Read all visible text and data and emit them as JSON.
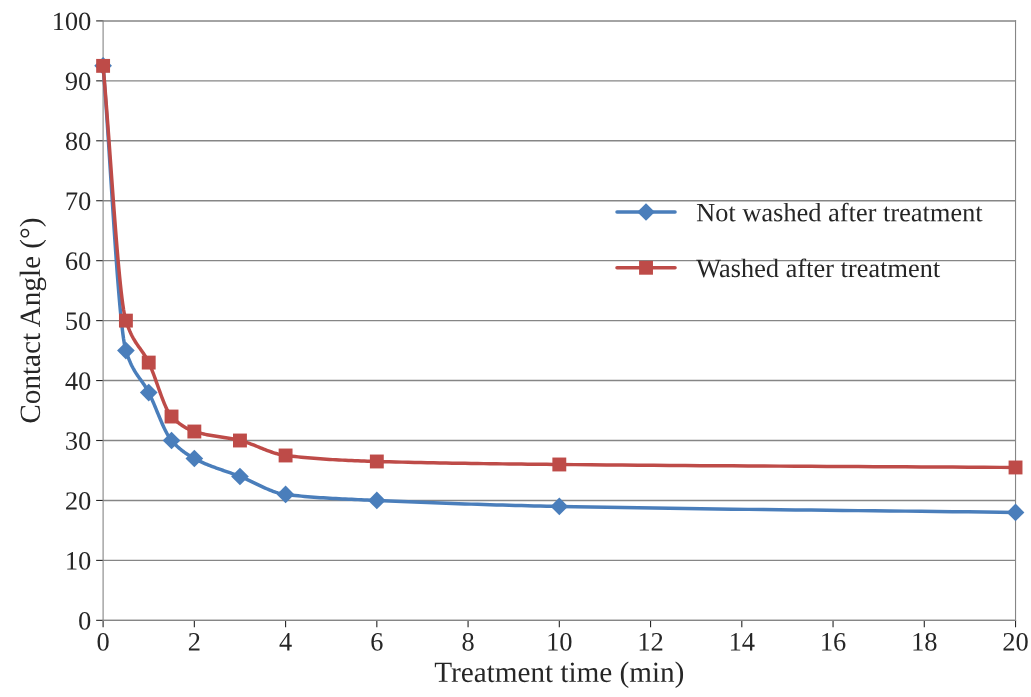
{
  "chart_data": {
    "type": "line",
    "xlabel": "Treatment time (min)",
    "ylabel": "Contact Angle (°)",
    "x": [
      0,
      0.5,
      1,
      1.5,
      2,
      3,
      4,
      6,
      10,
      20
    ],
    "series": [
      {
        "name": "Not washed after treatment",
        "color": "#4a7ebb",
        "marker": "diamond",
        "values": [
          92.5,
          45,
          38,
          30,
          27,
          24,
          21,
          20,
          19,
          18
        ]
      },
      {
        "name": "Washed after treatment",
        "color": "#be4b48",
        "marker": "square",
        "values": [
          92.5,
          50,
          43,
          34,
          31.5,
          30,
          27.5,
          26.5,
          26,
          25.5
        ]
      }
    ],
    "xlim": [
      0,
      20
    ],
    "xticks": [
      0,
      2,
      4,
      6,
      8,
      10,
      12,
      14,
      16,
      18,
      20
    ],
    "ylim": [
      0,
      100
    ],
    "yticks": [
      0,
      10,
      20,
      30,
      40,
      50,
      60,
      70,
      80,
      90,
      100
    ],
    "grid": "y",
    "legend": "right",
    "line_style": "solid"
  }
}
